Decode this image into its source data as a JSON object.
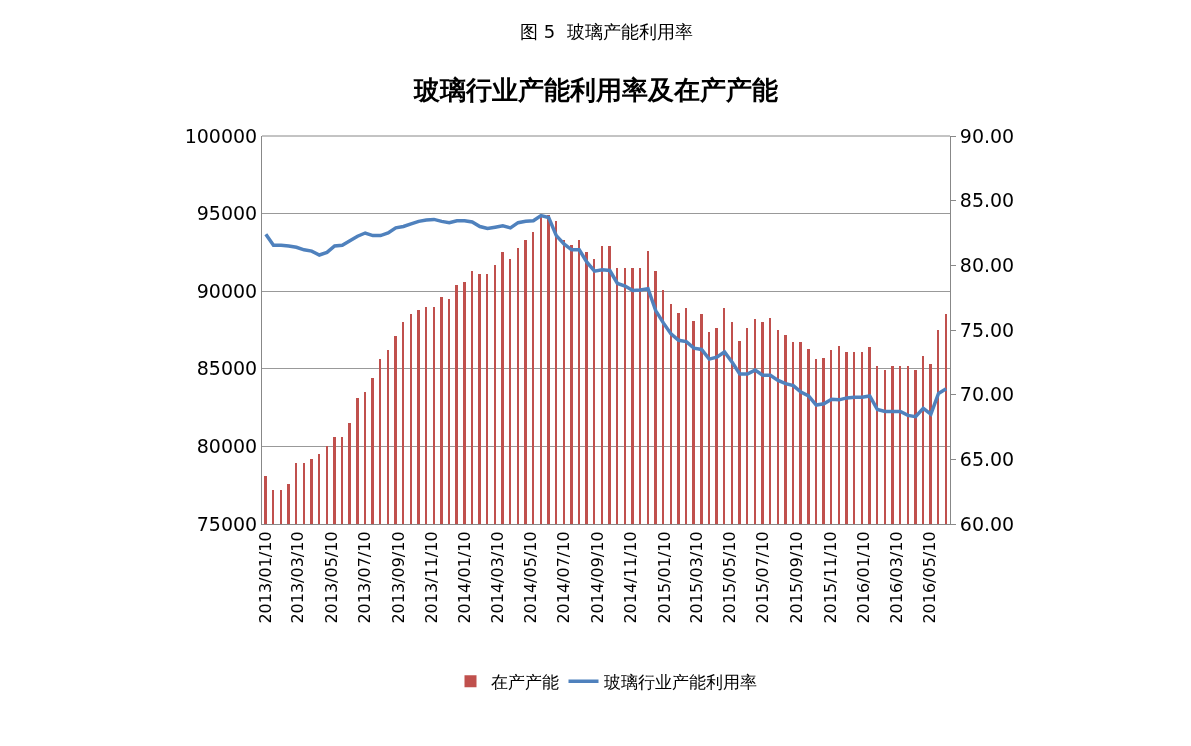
{
  "chart_data": {
    "type": "bar",
    "subtitle": "图 5  玻璃产能利用率",
    "title": "玻璃行业产能利用率及在产产能",
    "x": [
      "2013-01-10",
      "2013-01-24",
      "2013-02-07",
      "2013-02-21",
      "2013-03-07",
      "2013-03-21",
      "2013-04-04",
      "2013-04-18",
      "2013-05-02",
      "2013-05-16",
      "2013-05-30",
      "2013-06-13",
      "2013-06-27",
      "2013-07-11",
      "2013-07-25",
      "2013-08-08",
      "2013-08-22",
      "2013-09-05",
      "2013-09-19",
      "2013-10-03",
      "2013-10-17",
      "2013-10-31",
      "2013-11-14",
      "2013-11-28",
      "2013-12-12",
      "2013-12-26",
      "2014-01-09",
      "2014-01-23",
      "2014-02-06",
      "2014-02-20",
      "2014-03-06",
      "2014-03-20",
      "2014-04-03",
      "2014-04-17",
      "2014-05-01",
      "2014-05-15",
      "2014-05-29",
      "2014-06-12",
      "2014-06-26",
      "2014-07-10",
      "2014-07-24",
      "2014-08-07",
      "2014-08-21",
      "2014-09-04",
      "2014-09-18",
      "2014-10-02",
      "2014-10-16",
      "2014-10-30",
      "2014-11-13",
      "2014-11-27",
      "2014-12-11",
      "2014-12-25",
      "2015-01-08",
      "2015-01-22",
      "2015-02-05",
      "2015-02-19",
      "2015-03-05",
      "2015-03-19",
      "2015-04-02",
      "2015-04-16",
      "2015-04-30",
      "2015-05-14",
      "2015-05-28",
      "2015-06-11",
      "2015-06-25",
      "2015-07-09",
      "2015-07-23",
      "2015-08-06",
      "2015-08-20",
      "2015-09-03",
      "2015-09-17",
      "2015-10-01",
      "2015-10-15",
      "2015-10-29",
      "2015-11-12",
      "2015-11-26",
      "2015-12-10",
      "2015-12-24",
      "2016-01-07",
      "2016-01-21",
      "2016-02-04",
      "2016-02-18",
      "2016-03-03",
      "2016-03-17",
      "2016-03-31",
      "2016-04-14",
      "2016-04-28",
      "2016-05-12",
      "2016-05-26",
      "2016-06-09"
    ],
    "series": [
      {
        "name": "在产产能",
        "color": "#c0504d",
        "values": [
          78100,
          77200,
          77200,
          77600,
          78900,
          78900,
          79200,
          79500,
          80000,
          80600,
          80600,
          81500,
          83100,
          83500,
          84400,
          85600,
          86200,
          87100,
          88000,
          88500,
          88800,
          89000,
          89000,
          89600,
          89500,
          90400,
          90600,
          91300,
          91100,
          91100,
          91700,
          92500,
          92100,
          92800,
          93300,
          93800,
          94900,
          94900,
          94500,
          93300,
          93000,
          93300,
          92500,
          92100,
          92900,
          92900,
          91500,
          91500,
          91500,
          91500,
          92600,
          91300,
          90100,
          89200,
          88600,
          88900,
          88100,
          88500,
          87400,
          87600,
          88900,
          88000,
          86800,
          87600,
          88200,
          88000,
          88300,
          87500,
          87200,
          86700,
          86700,
          86300,
          85600,
          85700,
          86200,
          86500,
          86100,
          86100,
          86100,
          86400,
          85200,
          84900,
          85200,
          85200,
          85200,
          84900,
          85800,
          85300,
          87500,
          88500
        ]
      },
      {
        "name": "玻璃行业产能利用率",
        "type": "line",
        "axis": "y2",
        "color": "#4f81bd",
        "values": [
          82.4,
          81.55,
          81.55,
          81.5,
          81.4,
          81.2,
          81.1,
          80.8,
          81.0,
          81.5,
          81.55,
          81.9,
          82.25,
          82.5,
          82.3,
          82.3,
          82.5,
          82.9,
          83.0,
          83.2,
          83.4,
          83.5,
          83.55,
          83.4,
          83.3,
          83.45,
          83.45,
          83.35,
          83.0,
          82.85,
          82.95,
          83.05,
          82.9,
          83.3,
          83.4,
          83.45,
          83.85,
          83.7,
          82.3,
          81.65,
          81.2,
          81.2,
          80.25,
          79.55,
          79.65,
          79.6,
          78.6,
          78.4,
          78.05,
          78.1,
          78.2,
          76.5,
          75.55,
          74.7,
          74.2,
          74.1,
          73.6,
          73.5,
          72.75,
          72.9,
          73.3,
          72.5,
          71.6,
          71.6,
          71.9,
          71.5,
          71.5,
          71.1,
          70.85,
          70.7,
          70.2,
          69.9,
          69.2,
          69.3,
          69.65,
          69.6,
          69.75,
          69.8,
          69.8,
          69.9,
          68.85,
          68.7,
          68.7,
          68.7,
          68.4,
          68.3,
          68.95,
          68.5,
          70.1,
          70.45
        ]
      }
    ],
    "xlim": [
      "2013-01-03",
      "2016-06-16"
    ],
    "xticks": [
      {
        "value": "2013-01-10",
        "label": "2013/01/10"
      },
      {
        "value": "2013-03-10",
        "label": "2013/03/10"
      },
      {
        "value": "2013-05-10",
        "label": "2013/05/10"
      },
      {
        "value": "2013-07-10",
        "label": "2013/07/10"
      },
      {
        "value": "2013-09-10",
        "label": "2013/09/10"
      },
      {
        "value": "2013-11-10",
        "label": "2013/11/10"
      },
      {
        "value": "2014-01-10",
        "label": "2014/01/10"
      },
      {
        "value": "2014-03-10",
        "label": "2014/03/10"
      },
      {
        "value": "2014-05-10",
        "label": "2014/05/10"
      },
      {
        "value": "2014-07-10",
        "label": "2014/07/10"
      },
      {
        "value": "2014-09-10",
        "label": "2014/09/10"
      },
      {
        "value": "2014-11-10",
        "label": "2014/11/10"
      },
      {
        "value": "2015-01-10",
        "label": "2015/01/10"
      },
      {
        "value": "2015-03-10",
        "label": "2015/03/10"
      },
      {
        "value": "2015-05-10",
        "label": "2015/05/10"
      },
      {
        "value": "2015-07-10",
        "label": "2015/07/10"
      },
      {
        "value": "2015-09-10",
        "label": "2015/09/10"
      },
      {
        "value": "2015-11-10",
        "label": "2015/11/10"
      },
      {
        "value": "2016-01-10",
        "label": "2016/01/10"
      },
      {
        "value": "2016-03-10",
        "label": "2016/03/10"
      },
      {
        "value": "2016-05-10",
        "label": "2016/05/10"
      }
    ],
    "ylim": [
      75000,
      100000
    ],
    "yticks": [
      75000,
      80000,
      85000,
      90000,
      95000,
      100000
    ],
    "y2lim": [
      60,
      90
    ],
    "y2ticks": [
      {
        "value": 60,
        "label": "60.00"
      },
      {
        "value": 65,
        "label": "65.00"
      },
      {
        "value": 70,
        "label": "70.00"
      },
      {
        "value": 75,
        "label": "75.00"
      },
      {
        "value": 80,
        "label": "80.00"
      },
      {
        "value": 85,
        "label": "85.00"
      },
      {
        "value": 90,
        "label": "90.00"
      }
    ],
    "grid": "y",
    "legend": "bottom",
    "marker": "none",
    "line_style": "solid"
  }
}
